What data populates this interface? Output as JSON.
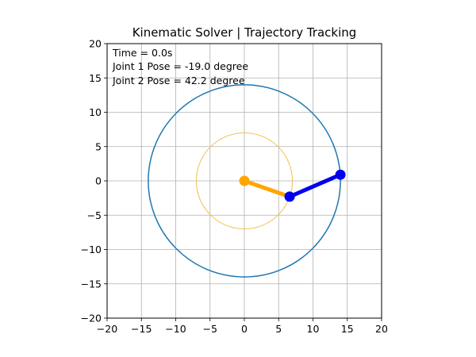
{
  "chart_data": {
    "type": "line",
    "title": "Kinematic Solver | Trajectory Tracking",
    "xlim": [
      -20,
      20
    ],
    "ylim": [
      -20,
      20
    ],
    "xticks": [
      -20,
      -15,
      -10,
      -5,
      0,
      5,
      10,
      15,
      20
    ],
    "yticks": [
      -20,
      -15,
      -10,
      -5,
      0,
      5,
      10,
      15,
      20
    ],
    "xtick_labels": [
      "−20",
      "−15",
      "−10",
      "−5",
      "0",
      "5",
      "10",
      "15",
      "20"
    ],
    "ytick_labels": [
      "−20",
      "−15",
      "−10",
      "−5",
      "0",
      "5",
      "10",
      "15",
      "20"
    ],
    "grid": true,
    "annotations": {
      "time": "Time = 0.0s",
      "joint1": "Joint 1 Pose = -19.0 degree",
      "joint2": "Joint 2 Pose = 42.2 degree"
    },
    "workspace_circles": [
      {
        "name": "outer-reach",
        "center": [
          0,
          0
        ],
        "radius": 14,
        "color": "#1f77b4"
      },
      {
        "name": "inner-reach",
        "center": [
          0,
          0
        ],
        "radius": 7,
        "color": "#f0c050"
      }
    ],
    "links": [
      {
        "name": "link-1",
        "from": [
          0,
          0
        ],
        "to": [
          6.6,
          -2.3
        ],
        "color": "#ffa500"
      },
      {
        "name": "link-2",
        "from": [
          6.6,
          -2.3
        ],
        "to": [
          14.0,
          0.9
        ],
        "color": "#0000ee"
      }
    ],
    "joints": [
      {
        "name": "base-joint",
        "at": [
          0,
          0
        ],
        "color": "#ffa500"
      },
      {
        "name": "elbow-joint",
        "at": [
          6.6,
          -2.3
        ],
        "color": "#0000ee"
      },
      {
        "name": "end-effector",
        "at": [
          14.0,
          0.9
        ],
        "color": "#0000ee"
      }
    ]
  }
}
